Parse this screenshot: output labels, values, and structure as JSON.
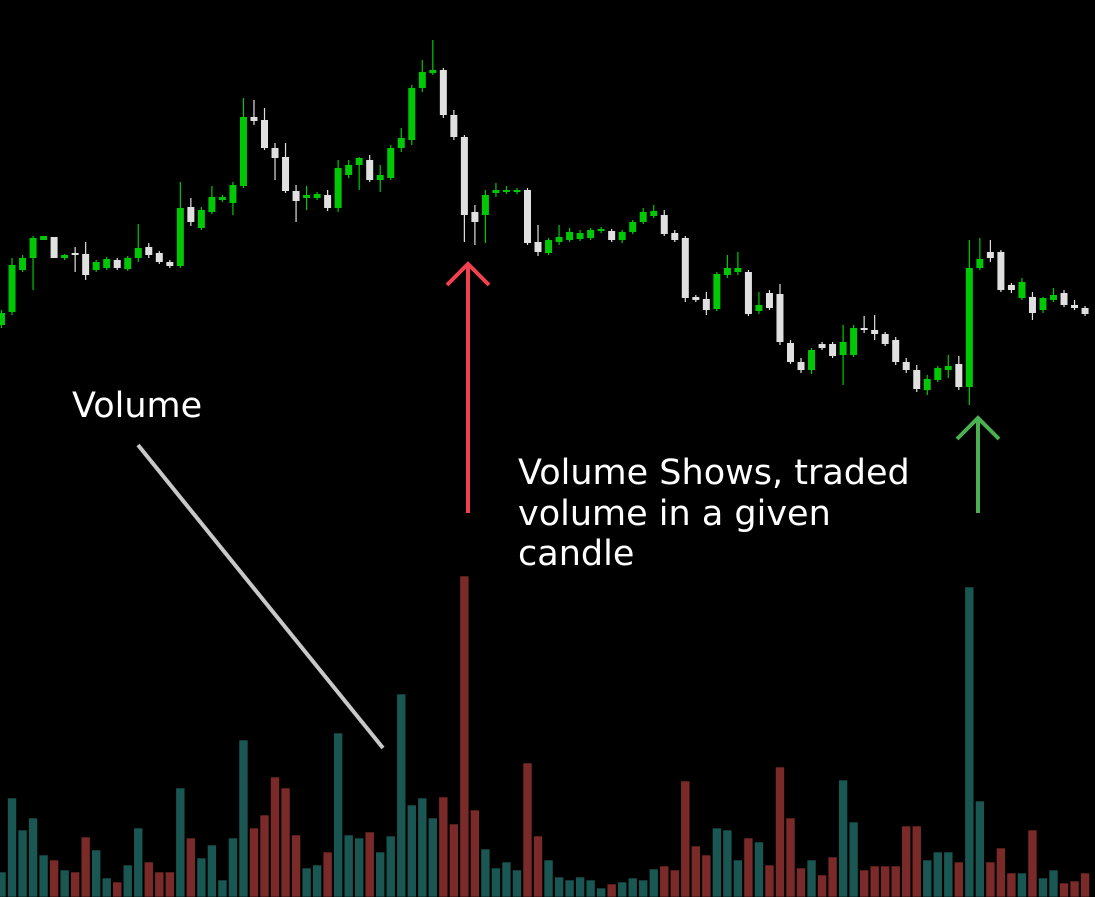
{
  "chart_data": {
    "type": "candlestick",
    "volume_label": "Volume",
    "note": [
      "Volume Shows, traded",
      "volume in a given",
      "candle"
    ],
    "up_color": "#00c805",
    "down_color": "#e0e0e0",
    "volume_up_color": "#1a5652",
    "volume_down_color": "#7a2a28",
    "ylim": [
      0,
      897
    ],
    "y2lim": [
      0,
      897
    ],
    "open": [
      572,
      585,
      627,
      639,
      657,
      660,
      639,
      644,
      643,
      627,
      629,
      637,
      628,
      639,
      650,
      644,
      635,
      631,
      690,
      669,
      685,
      697,
      694,
      711,
      780,
      777,
      749,
      740,
      706,
      699,
      699,
      702,
      689,
      722,
      732,
      737,
      717,
      719,
      749,
      757,
      809,
      824,
      827,
      782,
      760,
      685,
      682,
      704,
      705,
      705,
      707,
      655,
      644,
      655,
      657,
      658,
      659,
      666,
      666,
      657,
      665,
      675,
      681,
      682,
      664,
      659,
      600,
      598,
      588,
      622,
      625,
      625,
      586,
      604,
      603,
      554,
      535,
      527,
      553,
      553,
      542,
      542,
      569,
      567,
      563,
      557,
      535,
      527,
      507,
      517,
      527,
      533,
      510,
      629,
      645,
      645,
      612,
      599,
      600,
      587,
      597,
      604,
      592,
      589
    ],
    "high": [
      587,
      639,
      642,
      661,
      661,
      660,
      643,
      650,
      655,
      637,
      640,
      639,
      641,
      673,
      654,
      646,
      637,
      715,
      699,
      690,
      711,
      702,
      715,
      799,
      797,
      789,
      754,
      754,
      712,
      711,
      705,
      707,
      737,
      737,
      740,
      742,
      732,
      752,
      769,
      812,
      837,
      857,
      829,
      787,
      762,
      692,
      707,
      714,
      711,
      709,
      709,
      672,
      659,
      672,
      669,
      667,
      669,
      670,
      668,
      667,
      677,
      689,
      692,
      687,
      667,
      661,
      602,
      605,
      625,
      642,
      645,
      627,
      605,
      607,
      613,
      557,
      539,
      549,
      555,
      555,
      572,
      572,
      581,
      582,
      565,
      560,
      539,
      532,
      522,
      531,
      542,
      541,
      657,
      659,
      657,
      647,
      614,
      619,
      605,
      600,
      609,
      607,
      597,
      591
    ],
    "low": [
      569,
      582,
      625,
      607,
      657,
      639,
      637,
      625,
      617,
      625,
      627,
      627,
      626,
      635,
      639,
      633,
      629,
      629,
      671,
      667,
      683,
      695,
      682,
      709,
      772,
      747,
      717,
      704,
      675,
      687,
      697,
      686,
      685,
      719,
      707,
      715,
      705,
      717,
      745,
      752,
      805,
      822,
      779,
      757,
      655,
      652,
      654,
      700,
      703,
      703,
      652,
      641,
      642,
      652,
      655,
      656,
      657,
      664,
      655,
      654,
      663,
      673,
      679,
      661,
      655,
      595,
      595,
      582,
      586,
      619,
      622,
      581,
      583,
      587,
      552,
      533,
      524,
      523,
      547,
      539,
      512,
      540,
      564,
      557,
      551,
      532,
      524,
      505,
      502,
      515,
      519,
      507,
      492,
      627,
      635,
      605,
      604,
      597,
      577,
      584,
      595,
      590,
      587,
      581
    ],
    "close": [
      584,
      632,
      639,
      659,
      661,
      639,
      642,
      642,
      622,
      635,
      638,
      629,
      639,
      649,
      642,
      635,
      631,
      689,
      675,
      687,
      700,
      700,
      712,
      780,
      776,
      749,
      739,
      706,
      696,
      702,
      703,
      689,
      729,
      732,
      739,
      717,
      722,
      749,
      759,
      809,
      825,
      827,
      782,
      760,
      682,
      675,
      702,
      707,
      707,
      707,
      654,
      645,
      657,
      660,
      665,
      664,
      667,
      668,
      657,
      665,
      675,
      685,
      686,
      663,
      657,
      599,
      597,
      587,
      623,
      629,
      629,
      583,
      592,
      589,
      555,
      535,
      527,
      547,
      549,
      541,
      555,
      569,
      567,
      563,
      553,
      535,
      527,
      508,
      518,
      529,
      531,
      510,
      629,
      638,
      639,
      607,
      607,
      615,
      584,
      599,
      602,
      592,
      589,
      583
    ],
    "volume": [
      25,
      99,
      67,
      79,
      42,
      37,
      27,
      25,
      60,
      47,
      19,
      15,
      32,
      69,
      35,
      25,
      25,
      109,
      59,
      39,
      52,
      17,
      59,
      157,
      69,
      82,
      120,
      109,
      62,
      29,
      32,
      45,
      164,
      62,
      59,
      65,
      45,
      61,
      203,
      92,
      99,
      79,
      100,
      73,
      321,
      87,
      48,
      29,
      35,
      27,
      134,
      61,
      37,
      20,
      17,
      20,
      17,
      9,
      13,
      15,
      19,
      17,
      28,
      31,
      27,
      116,
      51,
      42,
      69,
      67,
      37,
      59,
      55,
      32,
      130,
      79,
      29,
      37,
      22,
      40,
      117,
      75,
      27,
      31,
      31,
      31,
      71,
      71,
      37,
      45,
      45,
      35,
      310,
      96,
      35,
      49,
      24,
      24,
      67,
      19,
      27,
      14,
      16,
      24
    ]
  }
}
